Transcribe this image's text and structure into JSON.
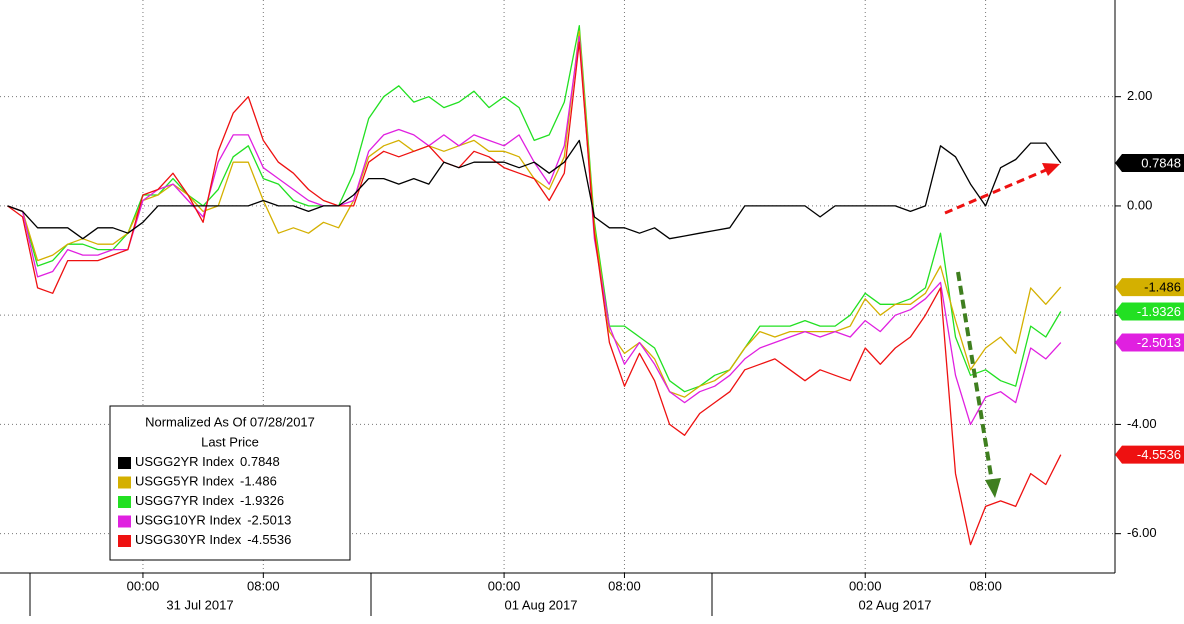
{
  "chart_data": {
    "type": "line",
    "legend_title": "Normalized As Of 07/28/2017",
    "legend_subtitle": "Last Price",
    "legend_position": "lower-left",
    "grid": true,
    "x": [
      -9,
      -8,
      -7,
      -6,
      -5,
      -4,
      -3,
      -2,
      -1,
      0,
      1,
      2,
      3,
      4,
      5,
      6,
      7,
      8,
      9,
      10,
      11,
      12,
      13,
      14,
      15,
      16,
      17,
      18,
      19,
      20,
      21,
      22,
      23,
      24,
      25,
      26,
      27,
      28,
      29,
      30,
      31,
      32,
      33,
      34,
      35,
      36,
      37,
      38,
      39,
      40,
      41,
      42,
      43,
      44,
      45,
      46,
      47,
      48,
      49,
      50,
      51,
      52,
      53,
      54,
      55,
      56,
      57,
      58,
      59,
      60,
      61
    ],
    "xlim": [
      -9.5,
      64.6
    ],
    "xticks": [
      {
        "value": 0,
        "label": "00:00"
      },
      {
        "value": 8,
        "label": "08:00"
      },
      {
        "value": 24,
        "label": "00:00"
      },
      {
        "value": 32,
        "label": "08:00"
      },
      {
        "value": 48,
        "label": "00:00"
      },
      {
        "value": 56,
        "label": "08:00"
      }
    ],
    "x_groups": [
      "31 Jul 2017",
      "01 Aug 2017",
      "02 Aug 2017"
    ],
    "ylim": [
      -6.72,
      3.77
    ],
    "yticks": [
      {
        "value": 2,
        "label": "2.00"
      },
      {
        "value": 0,
        "label": "0.00"
      },
      {
        "value": -2,
        "label": "-2.00"
      },
      {
        "value": -4,
        "label": "-4.00"
      },
      {
        "value": -6,
        "label": "-6.00"
      }
    ],
    "series": [
      {
        "name": "USGG2YR Index",
        "color": "#000000",
        "values": [
          0,
          -0.1,
          -0.4,
          -0.4,
          -0.4,
          -0.6,
          -0.4,
          -0.4,
          -0.5,
          -0.3,
          0,
          0,
          0,
          0,
          0,
          0,
          0,
          0.1,
          0,
          0,
          -0.1,
          0,
          0,
          0.2,
          0.5,
          0.5,
          0.4,
          0.5,
          0.4,
          0.8,
          0.7,
          0.8,
          0.8,
          0.8,
          0.7,
          0.8,
          0.6,
          0.8,
          1.2,
          -0.2,
          -0.4,
          -0.4,
          -0.5,
          -0.4,
          -0.6,
          -0.55,
          -0.5,
          -0.45,
          -0.4,
          0,
          0,
          0,
          0,
          0,
          -0.2,
          0,
          0,
          0,
          0,
          0,
          -0.1,
          0,
          1.1,
          0.9,
          0.4,
          0,
          0.7,
          0.85,
          1.15,
          1.15,
          0.7848
        ]
      },
      {
        "name": "USGG5YR Index",
        "color": "#d4b000",
        "values": [
          0,
          -0.1,
          -1.0,
          -0.9,
          -0.7,
          -0.6,
          -0.7,
          -0.7,
          -0.5,
          0.1,
          0.2,
          0.4,
          0.2,
          -0.1,
          0,
          0.8,
          0.8,
          0.1,
          -0.5,
          -0.4,
          -0.5,
          -0.3,
          -0.4,
          0.1,
          0.9,
          1.1,
          1.2,
          1.0,
          1.1,
          1.0,
          1.1,
          1.2,
          1.0,
          1.0,
          0.9,
          0.5,
          0.3,
          0.9,
          3.2,
          -0.4,
          -2.3,
          -2.7,
          -2.5,
          -2.8,
          -3.4,
          -3.5,
          -3.3,
          -3.2,
          -3.0,
          -2.6,
          -2.3,
          -2.4,
          -2.3,
          -2.3,
          -2.3,
          -2.3,
          -2.2,
          -1.7,
          -2.0,
          -1.8,
          -1.8,
          -1.6,
          -1.1,
          -2.1,
          -3.0,
          -2.6,
          -2.4,
          -2.7,
          -1.5,
          -1.8,
          -1.486
        ]
      },
      {
        "name": "USGG7YR Index",
        "color": "#22e022",
        "values": [
          0,
          -0.1,
          -1.1,
          -1.0,
          -0.7,
          -0.7,
          -0.8,
          -0.8,
          -0.5,
          0.2,
          0.2,
          0.5,
          0.2,
          0,
          0.3,
          0.9,
          1.1,
          0.5,
          0.4,
          0.1,
          0,
          0,
          0,
          0.6,
          1.6,
          2.0,
          2.2,
          1.9,
          2.0,
          1.8,
          1.9,
          2.1,
          1.8,
          2.0,
          1.8,
          1.2,
          1.3,
          1.9,
          3.3,
          -0.3,
          -2.2,
          -2.2,
          -2.4,
          -2.6,
          -3.2,
          -3.4,
          -3.3,
          -3.1,
          -3.0,
          -2.6,
          -2.2,
          -2.2,
          -2.2,
          -2.1,
          -2.2,
          -2.2,
          -2.0,
          -1.6,
          -1.8,
          -1.8,
          -1.7,
          -1.5,
          -0.5,
          -2.4,
          -3.1,
          -3.0,
          -3.2,
          -3.3,
          -2.2,
          -2.4,
          -1.9326
        ]
      },
      {
        "name": "USGG10YR Index",
        "color": "#e020e0",
        "values": [
          0,
          -0.1,
          -1.3,
          -1.2,
          -0.8,
          -0.9,
          -0.9,
          -0.8,
          -0.8,
          0.1,
          0.3,
          0.4,
          0.1,
          -0.2,
          0.8,
          1.3,
          1.3,
          0.7,
          0.5,
          0.3,
          0.1,
          0,
          0,
          0.1,
          1.0,
          1.3,
          1.4,
          1.3,
          1.1,
          1.3,
          1.1,
          1.3,
          1.2,
          1.1,
          1.3,
          0.8,
          0.4,
          1.1,
          3.1,
          -0.6,
          -2.2,
          -2.9,
          -2.5,
          -2.9,
          -3.4,
          -3.6,
          -3.4,
          -3.3,
          -3.1,
          -2.8,
          -2.6,
          -2.5,
          -2.4,
          -2.3,
          -2.4,
          -2.3,
          -2.4,
          -2.1,
          -2.3,
          -2.0,
          -1.9,
          -1.7,
          -1.4,
          -3.1,
          -4.0,
          -3.5,
          -3.4,
          -3.6,
          -2.6,
          -2.8,
          -2.5013
        ]
      },
      {
        "name": "USGG30YR Index",
        "color": "#ee1111",
        "values": [
          0,
          -0.2,
          -1.5,
          -1.6,
          -1.0,
          -1.0,
          -1.0,
          -0.9,
          -0.8,
          0.2,
          0.3,
          0.6,
          0.2,
          -0.3,
          1.0,
          1.7,
          2.0,
          1.2,
          0.8,
          0.6,
          0.3,
          0.1,
          0,
          0,
          0.8,
          1.0,
          0.9,
          1.0,
          1.1,
          0.8,
          0.7,
          1.0,
          0.9,
          0.7,
          0.6,
          0.5,
          0.1,
          0.6,
          3.0,
          -0.5,
          -2.5,
          -3.3,
          -2.7,
          -3.2,
          -4.0,
          -4.2,
          -3.8,
          -3.6,
          -3.4,
          -3.0,
          -2.9,
          -2.8,
          -3.0,
          -3.2,
          -3.0,
          -3.1,
          -3.2,
          -2.6,
          -2.9,
          -2.6,
          -2.4,
          -2.0,
          -1.5,
          -4.9,
          -6.2,
          -5.5,
          -5.4,
          -5.5,
          -4.9,
          -5.1,
          -4.5536
        ]
      }
    ]
  }
}
